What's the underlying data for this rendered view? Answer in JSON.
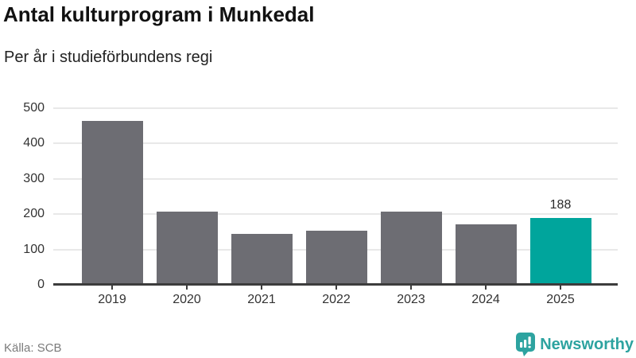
{
  "title": "Antal kulturprogram i Munkedal",
  "subtitle": "Per år i studieförbundens regi",
  "source": "Källa: SCB",
  "brand": {
    "name": "Newsworthy"
  },
  "colors": {
    "bar": "#6d6d73",
    "highlight": "#00a59c",
    "brand_teal": "#2da3a0",
    "grid": "#e8e8e8",
    "axis": "#3c3c3c",
    "label_text": "#333333",
    "muted_text": "#7b7b7b"
  },
  "chart_data": {
    "type": "bar",
    "title": "Antal kulturprogram i Munkedal",
    "subtitle": "Per år i studieförbundens regi",
    "categories": [
      "2019",
      "2020",
      "2021",
      "2022",
      "2023",
      "2024",
      "2025"
    ],
    "values": [
      462,
      205,
      143,
      150,
      205,
      168,
      188
    ],
    "highlight_index": 6,
    "highlight_label": "188",
    "xlabel": "",
    "ylabel": "",
    "ylim": [
      0,
      500
    ],
    "yticks": [
      0,
      100,
      200,
      300,
      400,
      500
    ],
    "grid": true,
    "legend": false
  }
}
